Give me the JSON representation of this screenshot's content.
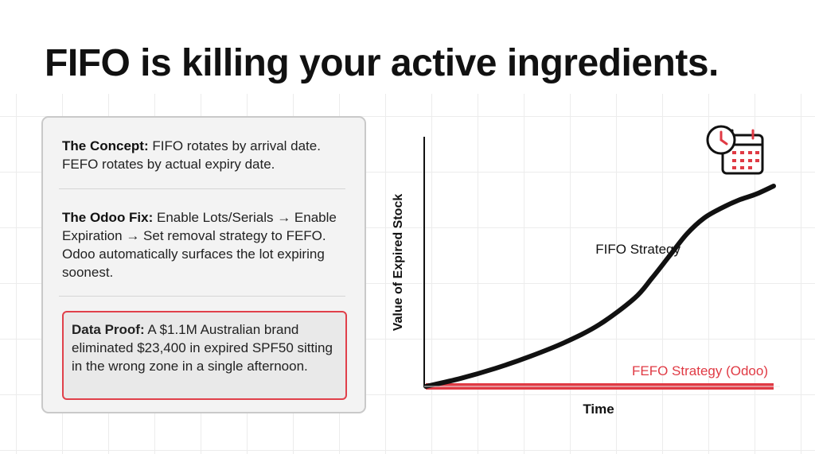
{
  "title": "FIFO is killing your active ingredients.",
  "panel": {
    "concept": {
      "label": "The Concept:",
      "text": " FIFO rotates by arrival date. FEFO rotates by actual expiry date."
    },
    "fix": {
      "label": "The Odoo Fix:",
      "text": " Enable Lots/Serials → Enable Expiration → Set removal strategy to FEFO. Odoo automatically surfaces the lot expiring soonest."
    },
    "proof": {
      "label": "Data Proof:",
      "text": " A $1.1M Australian brand eliminated $23,400 in expired SPF50 sitting in the wrong zone in a single afternoon."
    }
  },
  "icon": "clock-calendar-icon",
  "colors": {
    "fifo": "#111111",
    "fefo": "#e03a44",
    "accent": "#e0404a"
  },
  "chart_data": {
    "type": "line",
    "xlabel": "Time",
    "ylabel": "Value of Expired Stock",
    "xlim": [
      0,
      100
    ],
    "ylim": [
      0,
      100
    ],
    "grid": false,
    "series": [
      {
        "name": "FIFO Strategy",
        "x": [
          0,
          10,
          20,
          30,
          40,
          50,
          60,
          65,
          70,
          75,
          80,
          85,
          90,
          95,
          100
        ],
        "y": [
          0,
          4,
          9,
          15,
          22,
          31,
          44,
          54,
          65,
          76,
          84,
          89,
          93,
          96,
          100
        ]
      },
      {
        "name": "FEFO Strategy (Odoo)",
        "x": [
          0,
          100
        ],
        "y": [
          0,
          0
        ]
      }
    ]
  }
}
